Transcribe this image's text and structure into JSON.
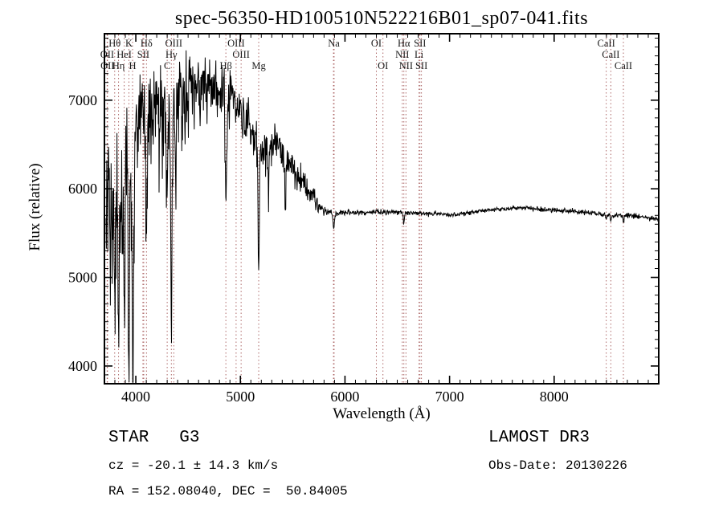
{
  "title": "spec-56350-HD100510N522216B01_sp07-041.fits",
  "annotations": {
    "object_class": "STAR   G3",
    "cz": "cz = -20.1 ± 14.3 km/s",
    "radec": "RA = 152.08040, DEC =  50.84005",
    "survey": "LAMOST DR3",
    "obs_date": "Obs-Date: 20130226"
  },
  "chart_data": {
    "type": "line",
    "title": "spec-56350-HD100510N522216B01_sp07-041.fits",
    "xlabel": "Wavelength (Å)",
    "ylabel": "Flux (relative)",
    "xlim": [
      3700,
      9000
    ],
    "ylim": [
      3800,
      7750
    ],
    "xticks": [
      4000,
      5000,
      6000,
      7000,
      8000
    ],
    "yticks": [
      4000,
      5000,
      6000,
      7000
    ],
    "minor_tick_step_x": 100,
    "minor_tick_step_y": 100,
    "grid": false,
    "line_color": "#000000",
    "marker_line_color": "#a05050",
    "continuum": [
      [
        3715,
        6100
      ],
      [
        3760,
        6200
      ],
      [
        3800,
        6150
      ],
      [
        3850,
        6250
      ],
      [
        3900,
        6300
      ],
      [
        3950,
        6450
      ],
      [
        4000,
        6650
      ],
      [
        4050,
        6800
      ],
      [
        4100,
        6850
      ],
      [
        4150,
        6950
      ],
      [
        4200,
        7000
      ],
      [
        4250,
        7050
      ],
      [
        4300,
        7050
      ],
      [
        4360,
        7100
      ],
      [
        4420,
        7130
      ],
      [
        4480,
        7170
      ],
      [
        4540,
        7200
      ],
      [
        4600,
        7220
      ],
      [
        4660,
        7200
      ],
      [
        4720,
        7170
      ],
      [
        4780,
        7120
      ],
      [
        4840,
        7060
      ],
      [
        4900,
        6980
      ],
      [
        4960,
        6950
      ],
      [
        5020,
        6850
      ],
      [
        5080,
        6750
      ],
      [
        5140,
        6550
      ],
      [
        5200,
        6400
      ],
      [
        5260,
        6450
      ],
      [
        5320,
        6500
      ],
      [
        5380,
        6400
      ],
      [
        5440,
        6300
      ],
      [
        5500,
        6200
      ],
      [
        5560,
        6100
      ],
      [
        5620,
        6020
      ],
      [
        5680,
        5920
      ],
      [
        5740,
        5830
      ],
      [
        5800,
        5760
      ],
      [
        5860,
        5730
      ],
      [
        5920,
        5720
      ],
      [
        6000,
        5730
      ],
      [
        6100,
        5735
      ],
      [
        6200,
        5730
      ],
      [
        6300,
        5740
      ],
      [
        6400,
        5735
      ],
      [
        6500,
        5740
      ],
      [
        6600,
        5725
      ],
      [
        6700,
        5730
      ],
      [
        6800,
        5715
      ],
      [
        6900,
        5720
      ],
      [
        7000,
        5705
      ],
      [
        7100,
        5715
      ],
      [
        7200,
        5735
      ],
      [
        7300,
        5750
      ],
      [
        7400,
        5760
      ],
      [
        7500,
        5770
      ],
      [
        7600,
        5780
      ],
      [
        7700,
        5785
      ],
      [
        7800,
        5775
      ],
      [
        7900,
        5765
      ],
      [
        8000,
        5760
      ],
      [
        8100,
        5750
      ],
      [
        8200,
        5745
      ],
      [
        8300,
        5735
      ],
      [
        8400,
        5725
      ],
      [
        8500,
        5705
      ],
      [
        8600,
        5695
      ],
      [
        8700,
        5700
      ],
      [
        8800,
        5685
      ],
      [
        8900,
        5670
      ],
      [
        9000,
        5660
      ]
    ],
    "noise_profile": [
      [
        3715,
        640
      ],
      [
        3900,
        640
      ],
      [
        4050,
        500
      ],
      [
        4200,
        430
      ],
      [
        4350,
        380
      ],
      [
        4500,
        300
      ],
      [
        4700,
        260
      ],
      [
        4900,
        240
      ],
      [
        5100,
        220
      ],
      [
        5300,
        200
      ],
      [
        5500,
        160
      ],
      [
        5650,
        130
      ],
      [
        5750,
        70
      ],
      [
        5820,
        35
      ],
      [
        5900,
        26
      ],
      [
        6500,
        24
      ],
      [
        7500,
        22
      ],
      [
        9000,
        25
      ]
    ],
    "absorption_lines": [
      {
        "wl": 3727,
        "depth": 500,
        "width": 6
      },
      {
        "wl": 3771,
        "depth": 900,
        "width": 7
      },
      {
        "wl": 3798,
        "depth": 1400,
        "width": 8
      },
      {
        "wl": 3835,
        "depth": 1600,
        "width": 8
      },
      {
        "wl": 3889,
        "depth": 1800,
        "width": 9
      },
      {
        "wl": 3934,
        "depth": 2300,
        "width": 10
      },
      {
        "wl": 3969,
        "depth": 2300,
        "width": 10
      },
      {
        "wl": 4102,
        "depth": 1400,
        "width": 10
      },
      {
        "wl": 4227,
        "depth": 600,
        "width": 8
      },
      {
        "wl": 4300,
        "depth": 650,
        "width": 16
      },
      {
        "wl": 4340,
        "depth": 2700,
        "width": 9
      },
      {
        "wl": 4383,
        "depth": 700,
        "width": 8
      },
      {
        "wl": 4861,
        "depth": 1250,
        "width": 9
      },
      {
        "wl": 5175,
        "depth": 1400,
        "width": 8
      },
      {
        "wl": 5270,
        "depth": 500,
        "width": 8
      },
      {
        "wl": 5430,
        "depth": 700,
        "width": 6
      },
      {
        "wl": 5893,
        "depth": 180,
        "width": 9
      },
      {
        "wl": 6563,
        "depth": 130,
        "width": 8
      },
      {
        "wl": 8498,
        "depth": 60,
        "width": 6
      },
      {
        "wl": 8542,
        "depth": 80,
        "width": 7
      },
      {
        "wl": 8662,
        "depth": 70,
        "width": 7
      }
    ],
    "marker_wavelengths": [
      3726,
      3729,
      3798,
      3835,
      3889,
      3934,
      3969,
      4068,
      4076,
      4102,
      4300,
      4340,
      4363,
      4861,
      4959,
      5007,
      5175,
      5890,
      5896,
      6300,
      6363,
      6548,
      6563,
      6583,
      6708,
      6717,
      6731,
      8498,
      8542,
      8662
    ],
    "spectral_lines": [
      {
        "label": "Hθ",
        "wl": 3798,
        "row": 1
      },
      {
        "label": "K",
        "wl": 3934,
        "row": 1
      },
      {
        "label": "Hδ",
        "wl": 4102,
        "row": 1
      },
      {
        "label": "OIII",
        "wl": 4363,
        "row": 1
      },
      {
        "label": "OIII",
        "wl": 4959,
        "row": 1
      },
      {
        "label": "Na",
        "wl": 5893,
        "row": 1
      },
      {
        "label": "OI",
        "wl": 6300,
        "row": 1
      },
      {
        "label": "Hα",
        "wl": 6563,
        "row": 1
      },
      {
        "label": "SII",
        "wl": 6717,
        "row": 1
      },
      {
        "label": "CaII",
        "wl": 8498,
        "row": 1
      },
      {
        "label": "OII",
        "wl": 3726,
        "row": 2
      },
      {
        "label": "HeI",
        "wl": 3889,
        "row": 2
      },
      {
        "label": "SII",
        "wl": 4072,
        "row": 2
      },
      {
        "label": "Hγ",
        "wl": 4340,
        "row": 2
      },
      {
        "label": "OIII",
        "wl": 5007,
        "row": 2
      },
      {
        "label": "NII",
        "wl": 6548,
        "row": 2
      },
      {
        "label": "Li",
        "wl": 6708,
        "row": 2
      },
      {
        "label": "CaII",
        "wl": 8542,
        "row": 2
      },
      {
        "label": "OII",
        "wl": 3729,
        "row": 3
      },
      {
        "label": "Hη",
        "wl": 3835,
        "row": 3
      },
      {
        "label": "H",
        "wl": 3969,
        "row": 3
      },
      {
        "label": "C",
        "wl": 4300,
        "row": 3
      },
      {
        "label": "Hβ",
        "wl": 4861,
        "row": 3
      },
      {
        "label": "Mg",
        "wl": 5175,
        "row": 3
      },
      {
        "label": "OI",
        "wl": 6363,
        "row": 3
      },
      {
        "label": "NII",
        "wl": 6583,
        "row": 3
      },
      {
        "label": "SII",
        "wl": 6731,
        "row": 3
      },
      {
        "label": "CaII",
        "wl": 8662,
        "row": 3
      }
    ]
  }
}
